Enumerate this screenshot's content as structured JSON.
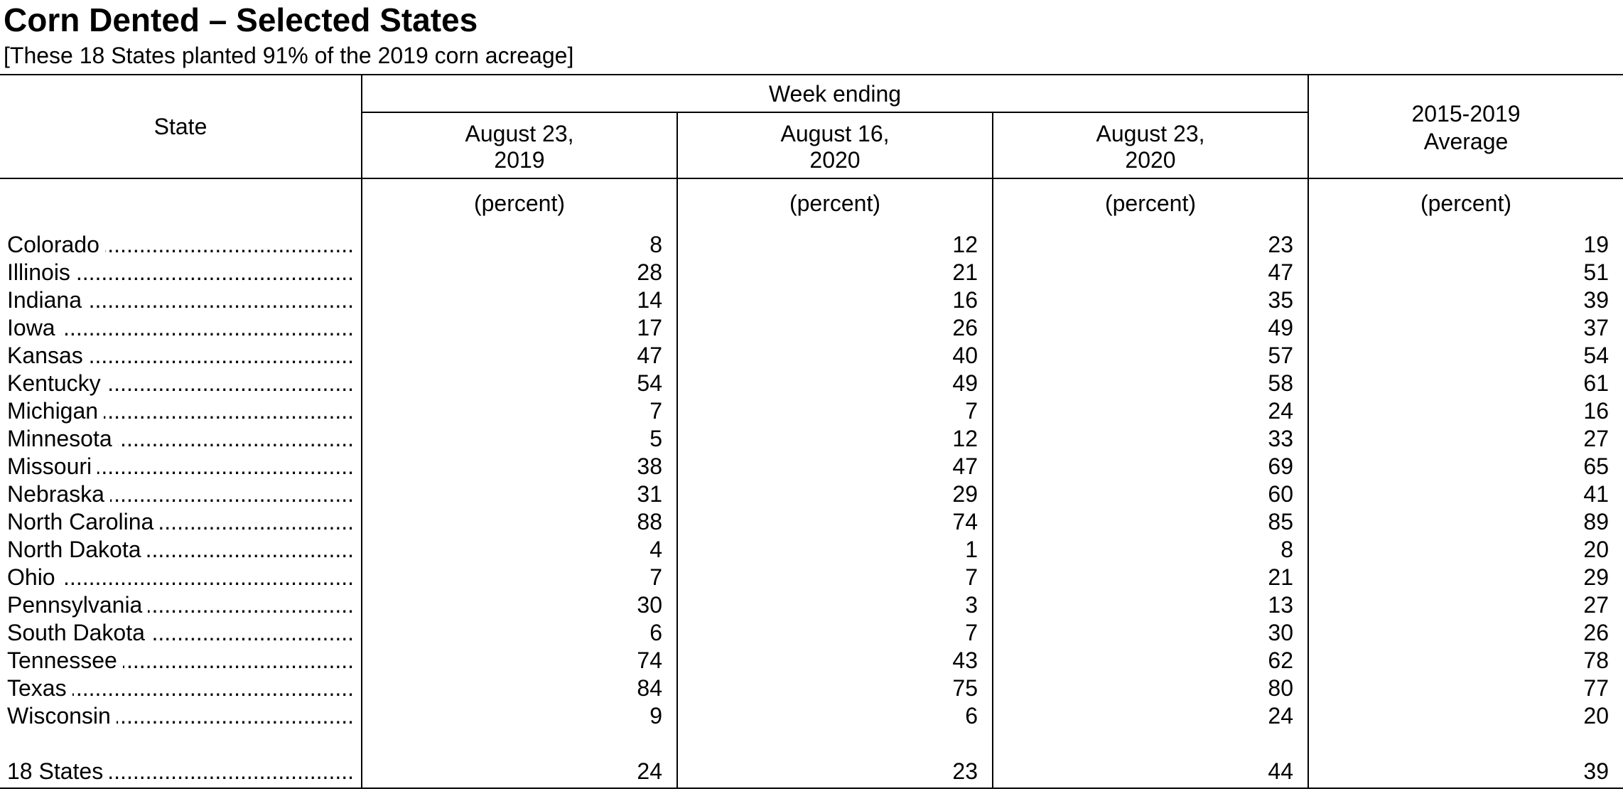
{
  "title": "Corn Dented – Selected States",
  "subtitle": "[These 18 States planted 91% of the 2019 corn acreage]",
  "table": {
    "state_header": "State",
    "group_header": "Week ending",
    "columns": [
      {
        "line1": "August 23,",
        "line2": "2019"
      },
      {
        "line1": "August 16,",
        "line2": "2020"
      },
      {
        "line1": "August 23,",
        "line2": "2020"
      },
      {
        "line1": "2015-2019",
        "line2": "Average"
      }
    ],
    "unit": "(percent)",
    "leader": "........................................................................................................",
    "rows": [
      {
        "state": "Colorado",
        "values": [
          "8",
          "12",
          "23",
          "19"
        ]
      },
      {
        "state": "Illinois",
        "values": [
          "28",
          "21",
          "47",
          "51"
        ]
      },
      {
        "state": "Indiana",
        "values": [
          "14",
          "16",
          "35",
          "39"
        ]
      },
      {
        "state": "Iowa",
        "values": [
          "17",
          "26",
          "49",
          "37"
        ]
      },
      {
        "state": "Kansas",
        "values": [
          "47",
          "40",
          "57",
          "54"
        ]
      },
      {
        "state": "Kentucky",
        "values": [
          "54",
          "49",
          "58",
          "61"
        ]
      },
      {
        "state": "Michigan",
        "values": [
          "7",
          "7",
          "24",
          "16"
        ]
      },
      {
        "state": "Minnesota",
        "values": [
          "5",
          "12",
          "33",
          "27"
        ]
      },
      {
        "state": "Missouri",
        "values": [
          "38",
          "47",
          "69",
          "65"
        ]
      },
      {
        "state": "Nebraska",
        "values": [
          "31",
          "29",
          "60",
          "41"
        ]
      },
      {
        "state": "North Carolina",
        "values": [
          "88",
          "74",
          "85",
          "89"
        ]
      },
      {
        "state": "North Dakota",
        "values": [
          "4",
          "1",
          "8",
          "20"
        ]
      },
      {
        "state": "Ohio",
        "values": [
          "7",
          "7",
          "21",
          "29"
        ]
      },
      {
        "state": "Pennsylvania",
        "values": [
          "30",
          "3",
          "13",
          "27"
        ]
      },
      {
        "state": "South Dakota",
        "values": [
          "6",
          "7",
          "30",
          "26"
        ]
      },
      {
        "state": "Tennessee",
        "values": [
          "74",
          "43",
          "62",
          "78"
        ]
      },
      {
        "state": "Texas",
        "values": [
          "84",
          "75",
          "80",
          "77"
        ]
      },
      {
        "state": "Wisconsin",
        "values": [
          "9",
          "6",
          "24",
          "20"
        ]
      }
    ],
    "total": {
      "state": "18 States",
      "values": [
        "24",
        "23",
        "44",
        "39"
      ]
    }
  }
}
